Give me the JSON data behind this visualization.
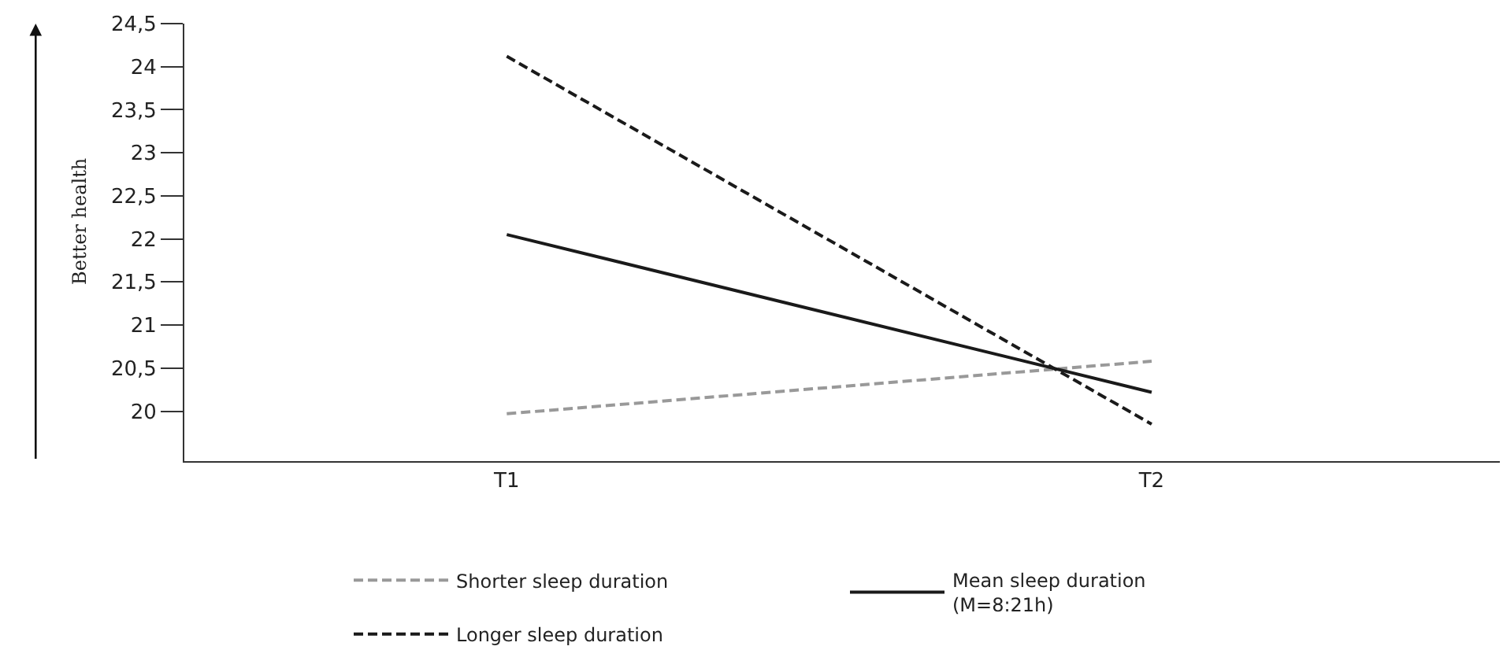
{
  "chart_data": {
    "type": "line",
    "ylabel": "Better health",
    "categories": [
      "T1",
      "T2"
    ],
    "series": [
      {
        "name": "Shorter sleep duration",
        "color": "#999999",
        "line_style": "dashed",
        "values": [
          19.97,
          20.58
        ]
      },
      {
        "name": "Mean sleep duration\n(M=8:21h)",
        "color": "#1a1a1a",
        "line_style": "solid",
        "values": [
          22.05,
          20.22
        ]
      },
      {
        "name": "Longer sleep duration",
        "color": "#1a1a1a",
        "line_style": "dashed",
        "values": [
          24.12,
          19.85
        ]
      }
    ],
    "ylim": [
      19.42,
      24.5
    ],
    "yticks": [
      20,
      {
        "value": 20.5,
        "label": "20,5"
      },
      21,
      {
        "value": 21.5,
        "label": "21,5"
      },
      22,
      {
        "value": 22.5,
        "label": "22,5"
      },
      23,
      {
        "value": 23.5,
        "label": "23,5"
      },
      24,
      {
        "value": 24.5,
        "label": "24,5"
      }
    ],
    "grid": false,
    "legend": "bottom",
    "marker": "none"
  }
}
